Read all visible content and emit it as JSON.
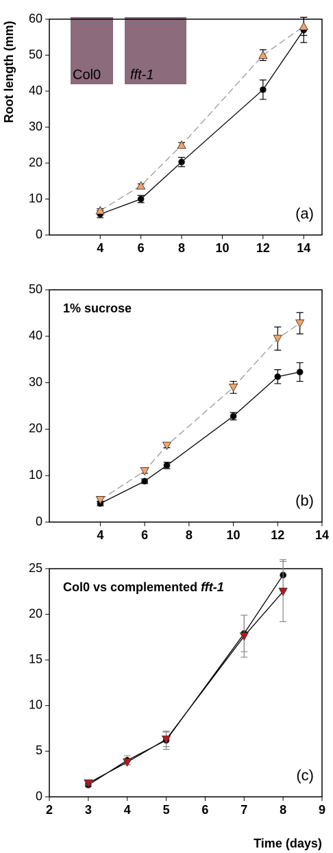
{
  "chart_data": [
    {
      "type": "line",
      "ylabel": "Root length (mm)",
      "panel_label": "(a)",
      "inset_labels": [
        "Col0",
        "fft-1"
      ],
      "x": [
        4,
        6,
        8,
        12,
        14
      ],
      "xlim": [
        1.5,
        14.9
      ],
      "xticks": [
        4,
        6,
        8,
        10,
        12,
        14
      ],
      "ylim": [
        0,
        60
      ],
      "yticks": [
        0,
        10,
        20,
        30,
        40,
        50,
        60
      ],
      "series": [
        {
          "color": "#000000",
          "marker": "circle",
          "line_style": "solid",
          "values": [
            5.8,
            10,
            20.3,
            40.4,
            57
          ],
          "errors": [
            1,
            1,
            1.3,
            2.7,
            3.5
          ]
        },
        {
          "color": "#f4a36a",
          "marker": "triangle-up",
          "line_style": "dashed",
          "values": [
            6.8,
            13.7,
            25,
            50,
            58
          ],
          "errors": [
            0.5,
            0.5,
            0.7,
            1.5,
            2.5
          ]
        }
      ]
    },
    {
      "type": "line",
      "panel_label": "(b)",
      "annotation": [
        "1% sucrose"
      ],
      "x": [
        4,
        6,
        7,
        10,
        12,
        13
      ],
      "xlim": [
        1.7,
        14
      ],
      "xticks": [
        4,
        6,
        8,
        10,
        12,
        14
      ],
      "ylim": [
        0,
        50
      ],
      "yticks": [
        0,
        10,
        20,
        30,
        40,
        50
      ],
      "series": [
        {
          "color": "#000000",
          "marker": "circle",
          "line_style": "solid",
          "values": [
            4,
            8.8,
            12.2,
            22.8,
            31.3,
            32.3
          ],
          "errors": [
            0.5,
            0.5,
            0.7,
            0.8,
            1.5,
            2
          ]
        },
        {
          "color": "#f4a36a",
          "marker": "triangle-down",
          "line_style": "dashed",
          "values": [
            4.8,
            11,
            16.5,
            29,
            39.5,
            42.8
          ],
          "errors": [
            0.4,
            0.5,
            0.5,
            1.3,
            2.5,
            2.3
          ]
        }
      ]
    },
    {
      "type": "line",
      "panel_label": "(c)",
      "annotation": [
        "Col0 vs complemented",
        "fft-1"
      ],
      "xlabel": "Time (days)",
      "x": [
        3,
        4,
        5,
        7,
        8
      ],
      "xlim": [
        2,
        9
      ],
      "xticks": [
        2,
        3,
        4,
        5,
        6,
        7,
        8,
        9
      ],
      "ylim": [
        0,
        25
      ],
      "yticks": [
        0,
        5,
        10,
        15,
        20,
        25
      ],
      "series": [
        {
          "color": "#000000",
          "marker": "circle",
          "line_style": "solid",
          "values": [
            1.3,
            4,
            6.2,
            17.9,
            24.3
          ],
          "errors": [
            0.2,
            0.5,
            1,
            2,
            1.7
          ]
        },
        {
          "color": "#c0141c",
          "marker": "triangle-down",
          "line_style": "solid",
          "values": [
            1.5,
            3.8,
            6.3,
            17.6,
            22.5
          ],
          "errors": [
            0.2,
            0.3,
            0.8,
            2.3,
            3.3
          ]
        }
      ]
    }
  ]
}
